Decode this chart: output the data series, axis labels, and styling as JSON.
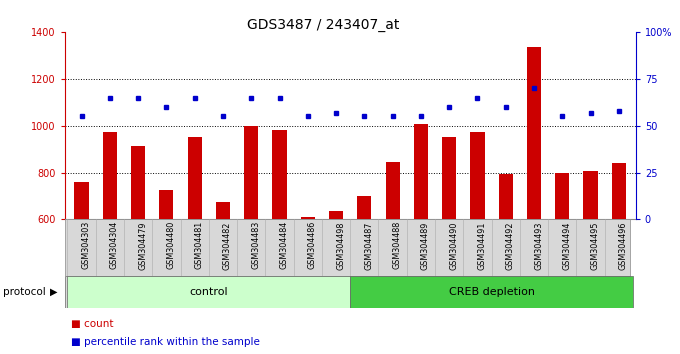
{
  "title": "GDS3487 / 243407_at",
  "categories": [
    "GSM304303",
    "GSM304304",
    "GSM304479",
    "GSM304480",
    "GSM304481",
    "GSM304482",
    "GSM304483",
    "GSM304484",
    "GSM304486",
    "GSM304498",
    "GSM304487",
    "GSM304488",
    "GSM304489",
    "GSM304490",
    "GSM304491",
    "GSM304492",
    "GSM304493",
    "GSM304494",
    "GSM304495",
    "GSM304496"
  ],
  "bar_values": [
    760,
    975,
    915,
    725,
    950,
    675,
    1000,
    980,
    610,
    635,
    700,
    845,
    1005,
    950,
    975,
    795,
    1335,
    800,
    805,
    840
  ],
  "dot_values": [
    55,
    65,
    65,
    60,
    65,
    55,
    65,
    65,
    55,
    57,
    55,
    55,
    55,
    60,
    65,
    60,
    70,
    55,
    57,
    58
  ],
  "control_count": 10,
  "creb_count": 10,
  "ylim_left": [
    600,
    1400
  ],
  "ylim_right": [
    0,
    100
  ],
  "yticks_left": [
    600,
    800,
    1000,
    1200,
    1400
  ],
  "yticks_right": [
    0,
    25,
    50,
    75,
    100
  ],
  "yright_labels": [
    "0",
    "25",
    "50",
    "75",
    "100%"
  ],
  "bar_color": "#cc0000",
  "dot_color": "#0000cc",
  "control_color_light": "#ccffcc",
  "creb_color": "#44cc44",
  "protocol_label": "protocol",
  "control_label": "control",
  "creb_label": "CREB depletion",
  "legend_bar_label": "count",
  "legend_dot_label": "percentile rank within the sample",
  "bg_color": "#ffffff",
  "title_fontsize": 10,
  "tick_fontsize": 7,
  "label_fontsize": 8
}
